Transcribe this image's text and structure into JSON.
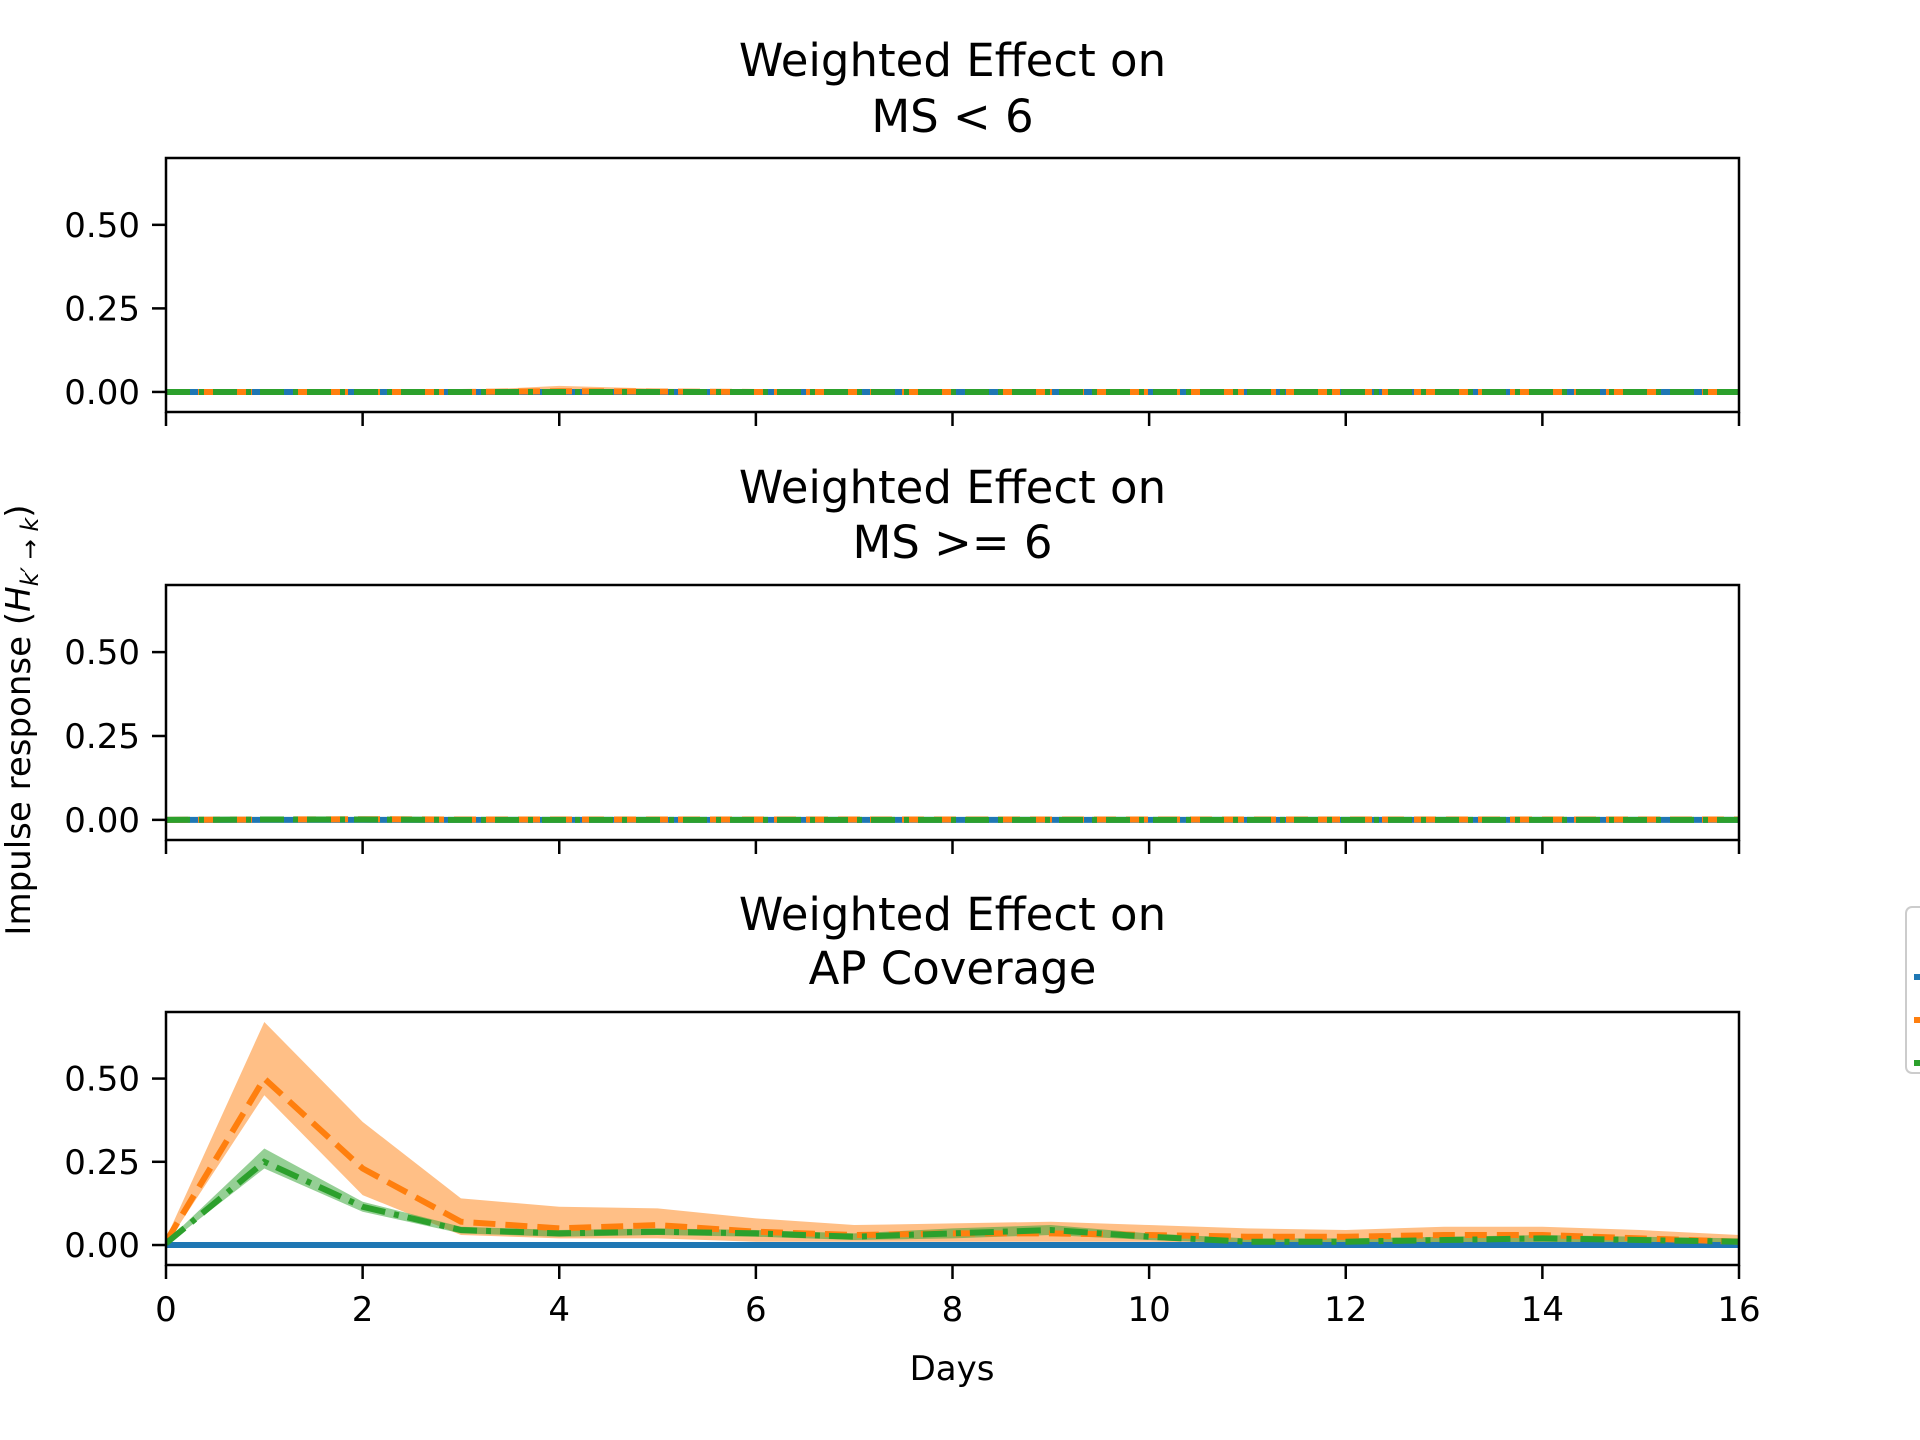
{
  "chart_data": {
    "type": "line",
    "ylabel_main": "Impulse response (",
    "ylabel_symbol": "H",
    "ylabel_subscript": "k′ → k",
    "ylabel_close": ")",
    "xlabel": "Days",
    "xlim": [
      0,
      16
    ],
    "ylim": [
      -0.06,
      0.7
    ],
    "x_ticks": [
      0,
      2,
      4,
      6,
      8,
      10,
      12,
      14,
      16
    ],
    "y_ticks": [
      0.0,
      0.25,
      0.5
    ],
    "y_tick_labels": [
      "0.00",
      "0.25",
      "0.50"
    ],
    "x_tick_labels": [
      "0",
      "2",
      "4",
      "6",
      "8",
      "10",
      "12",
      "14",
      "16"
    ],
    "grid": false,
    "legend_position": "right (clipped at figure edge)",
    "series_styles": [
      {
        "color": "#1f77b4",
        "dash": "solid"
      },
      {
        "color": "#ff7f0e",
        "dash": "dashed"
      },
      {
        "color": "#2ca02c",
        "dash": "dashdot"
      }
    ],
    "x": [
      0,
      1,
      2,
      3,
      4,
      5,
      6,
      7,
      8,
      9,
      10,
      11,
      12,
      13,
      14,
      15,
      16
    ],
    "panels": [
      {
        "title_line1": "Weighted Effect on",
        "title_line2": "MS < 6",
        "series": [
          {
            "values": [
              0,
              0,
              0,
              0,
              0,
              0,
              0,
              0,
              0,
              0,
              0,
              0,
              0,
              0,
              0,
              0,
              0
            ],
            "lower": null,
            "upper": null
          },
          {
            "values": [
              0,
              0,
              0,
              0,
              0.002,
              0.001,
              0,
              0,
              0,
              0,
              0,
              0,
              0,
              0,
              0,
              0,
              0
            ],
            "lower": [
              0,
              0,
              0,
              0,
              0,
              0,
              0,
              0,
              0,
              0,
              0,
              0,
              0,
              0,
              0,
              0,
              0
            ],
            "upper": [
              0,
              0.003,
              0.003,
              0.004,
              0.018,
              0.01,
              0.005,
              0.003,
              0.003,
              0.003,
              0.005,
              0.006,
              0.004,
              0.003,
              0.003,
              0.003,
              0.002
            ]
          },
          {
            "values": [
              0,
              0,
              0,
              0,
              0,
              0,
              0,
              0,
              0,
              0,
              0,
              0,
              0,
              0,
              0,
              0,
              0
            ],
            "lower": [
              0,
              0,
              0,
              0,
              0,
              0,
              0,
              0,
              0,
              0,
              0,
              0,
              0,
              0,
              0,
              0,
              0
            ],
            "upper": [
              0,
              0.002,
              0.002,
              0.002,
              0.004,
              0.003,
              0.002,
              0.002,
              0.002,
              0.002,
              0.002,
              0.002,
              0.002,
              0.002,
              0.002,
              0.002,
              0.002
            ]
          }
        ]
      },
      {
        "title_line1": "Weighted Effect on",
        "title_line2": "MS >= 6",
        "series": [
          {
            "values": [
              0,
              0,
              0,
              0,
              0,
              0,
              0,
              0,
              0,
              0,
              0,
              0,
              0,
              0,
              0,
              0,
              0
            ],
            "lower": null,
            "upper": null
          },
          {
            "values": [
              0,
              0.001,
              0.002,
              0.001,
              0.001,
              0.001,
              0.001,
              0.001,
              0.001,
              0.001,
              0.001,
              0.001,
              0.001,
              0.001,
              0.001,
              0.001,
              0.001
            ],
            "lower": [
              0,
              0,
              0,
              0,
              0,
              0,
              0,
              0,
              0,
              0,
              0,
              0,
              0,
              0,
              0,
              0,
              0
            ],
            "upper": [
              0,
              0.006,
              0.007,
              0.005,
              0.005,
              0.005,
              0.004,
              0.004,
              0.004,
              0.004,
              0.004,
              0.004,
              0.004,
              0.004,
              0.004,
              0.004,
              0.003
            ]
          },
          {
            "values": [
              0,
              0.001,
              0.001,
              0,
              0,
              0,
              0,
              0,
              0,
              0,
              0,
              0,
              0,
              0,
              0,
              0,
              0
            ],
            "lower": [
              0,
              0,
              0,
              0,
              0,
              0,
              0,
              0,
              0,
              0,
              0,
              0,
              0,
              0,
              0,
              0,
              0
            ],
            "upper": [
              0,
              0.004,
              0.004,
              0.003,
              0.003,
              0.003,
              0.003,
              0.003,
              0.003,
              0.003,
              0.003,
              0.003,
              0.003,
              0.003,
              0.003,
              0.003,
              0.003
            ]
          }
        ]
      },
      {
        "title_line1": "Weighted Effect on",
        "title_line2": "AP Coverage",
        "series": [
          {
            "values": [
              0,
              0,
              0,
              0,
              0,
              0,
              0,
              0,
              0,
              0,
              0,
              0,
              0,
              0,
              0,
              0,
              0
            ],
            "lower": null,
            "upper": null
          },
          {
            "values": [
              0.01,
              0.5,
              0.23,
              0.07,
              0.05,
              0.06,
              0.04,
              0.03,
              0.035,
              0.035,
              0.03,
              0.025,
              0.025,
              0.03,
              0.03,
              0.02,
              0.01
            ],
            "lower": [
              0,
              0.45,
              0.15,
              0.03,
              0.02,
              0.02,
              0.01,
              0.01,
              0.01,
              0.01,
              0.01,
              0.005,
              0.005,
              0.005,
              0.005,
              0.005,
              0
            ],
            "upper": [
              0.02,
              0.67,
              0.37,
              0.14,
              0.115,
              0.11,
              0.08,
              0.06,
              0.065,
              0.07,
              0.06,
              0.05,
              0.045,
              0.055,
              0.055,
              0.045,
              0.03
            ]
          },
          {
            "values": [
              0.005,
              0.25,
              0.115,
              0.045,
              0.035,
              0.04,
              0.035,
              0.025,
              0.035,
              0.045,
              0.025,
              0.01,
              0.01,
              0.015,
              0.02,
              0.015,
              0.01
            ],
            "lower": [
              0,
              0.23,
              0.1,
              0.035,
              0.025,
              0.03,
              0.025,
              0.015,
              0.02,
              0.03,
              0.015,
              0.005,
              0.005,
              0.005,
              0.01,
              0.005,
              0
            ],
            "upper": [
              0.01,
              0.29,
              0.13,
              0.055,
              0.045,
              0.05,
              0.045,
              0.035,
              0.05,
              0.06,
              0.035,
              0.02,
              0.02,
              0.025,
              0.03,
              0.025,
              0.02
            ]
          }
        ]
      }
    ]
  }
}
